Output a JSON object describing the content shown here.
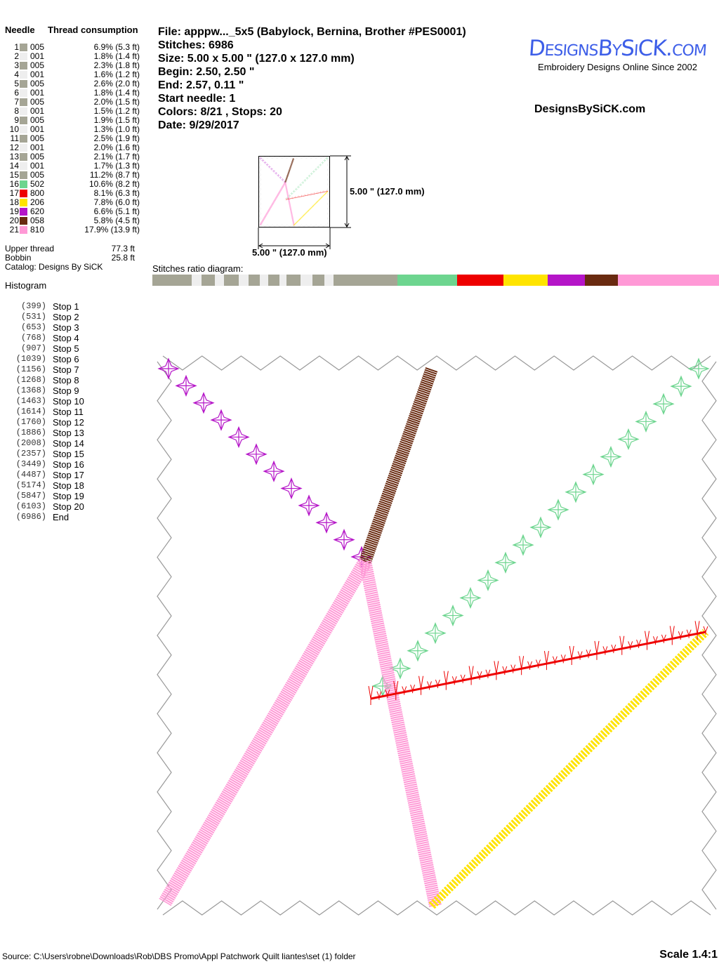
{
  "needle_table": {
    "header_needle": "Needle",
    "header_consumption": "Thread consumption",
    "rows": [
      {
        "num": "1",
        "code": "005",
        "color": "#a5a595",
        "consumption": "6.9% (5.3 ft)",
        "pct": 6.9
      },
      {
        "num": "2",
        "code": "001",
        "color": "#eeeeee",
        "consumption": "1.8% (1.4 ft)",
        "pct": 1.8
      },
      {
        "num": "3",
        "code": "005",
        "color": "#a5a595",
        "consumption": "2.3% (1.8 ft)",
        "pct": 2.3
      },
      {
        "num": "4",
        "code": "001",
        "color": "#eeeeee",
        "consumption": "1.6% (1.2 ft)",
        "pct": 1.6
      },
      {
        "num": "5",
        "code": "005",
        "color": "#a5a595",
        "consumption": "2.6% (2.0 ft)",
        "pct": 2.6
      },
      {
        "num": "6",
        "code": "001",
        "color": "#eeeeee",
        "consumption": "1.8% (1.4 ft)",
        "pct": 1.8
      },
      {
        "num": "7",
        "code": "005",
        "color": "#a5a595",
        "consumption": "2.0% (1.5 ft)",
        "pct": 2.0
      },
      {
        "num": "8",
        "code": "001",
        "color": "#eeeeee",
        "consumption": "1.5% (1.2 ft)",
        "pct": 1.5
      },
      {
        "num": "9",
        "code": "005",
        "color": "#a5a595",
        "consumption": "1.9% (1.5 ft)",
        "pct": 1.9
      },
      {
        "num": "10",
        "code": "001",
        "color": "#eeeeee",
        "consumption": "1.3% (1.0 ft)",
        "pct": 1.3
      },
      {
        "num": "11",
        "code": "005",
        "color": "#a5a595",
        "consumption": "2.5% (1.9 ft)",
        "pct": 2.5
      },
      {
        "num": "12",
        "code": "001",
        "color": "#eeeeee",
        "consumption": "2.0% (1.6 ft)",
        "pct": 2.0
      },
      {
        "num": "13",
        "code": "005",
        "color": "#a5a595",
        "consumption": "2.1% (1.7 ft)",
        "pct": 2.1
      },
      {
        "num": "14",
        "code": "001",
        "color": "#eeeeee",
        "consumption": "1.7% (1.3 ft)",
        "pct": 1.7
      },
      {
        "num": "15",
        "code": "005",
        "color": "#a5a595",
        "consumption": "11.2% (8.7 ft)",
        "pct": 11.2
      },
      {
        "num": "16",
        "code": "502",
        "color": "#6dd58f",
        "consumption": "10.6% (8.2 ft)",
        "pct": 10.6
      },
      {
        "num": "17",
        "code": "800",
        "color": "#ee0000",
        "consumption": "8.1% (6.3 ft)",
        "pct": 8.1
      },
      {
        "num": "18",
        "code": "206",
        "color": "#ffe400",
        "consumption": "7.8% (6.0 ft)",
        "pct": 7.8
      },
      {
        "num": "19",
        "code": "620",
        "color": "#b515c8",
        "consumption": "6.6% (5.1 ft)",
        "pct": 6.6
      },
      {
        "num": "20",
        "code": "058",
        "color": "#692a10",
        "consumption": "5.8% (4.5 ft)",
        "pct": 5.8
      },
      {
        "num": "21",
        "code": "810",
        "color": "#ff99d6",
        "consumption": "17.9% (13.9 ft)",
        "pct": 17.9
      }
    ]
  },
  "totals": {
    "upper_label": "Upper thread",
    "upper_value": "77.3 ft",
    "bobbin_label": "Bobbin",
    "bobbin_value": "25.8 ft",
    "catalog": "Catalog: Designs By SiCK"
  },
  "histogram": {
    "title": "Histogram",
    "stops": [
      {
        "count": "(399)",
        "label": "Stop 1"
      },
      {
        "count": "(531)",
        "label": "Stop 2"
      },
      {
        "count": "(653)",
        "label": "Stop 3"
      },
      {
        "count": "(768)",
        "label": "Stop 4"
      },
      {
        "count": "(907)",
        "label": "Stop 5"
      },
      {
        "count": "(1039)",
        "label": "Stop 6"
      },
      {
        "count": "(1156)",
        "label": "Stop 7"
      },
      {
        "count": "(1268)",
        "label": "Stop 8"
      },
      {
        "count": "(1368)",
        "label": "Stop 9"
      },
      {
        "count": "(1463)",
        "label": "Stop 10"
      },
      {
        "count": "(1614)",
        "label": "Stop 11"
      },
      {
        "count": "(1760)",
        "label": "Stop 12"
      },
      {
        "count": "(1886)",
        "label": "Stop 13"
      },
      {
        "count": "(2008)",
        "label": "Stop 14"
      },
      {
        "count": "(2357)",
        "label": "Stop 15"
      },
      {
        "count": "(3449)",
        "label": "Stop 16"
      },
      {
        "count": "(4487)",
        "label": "Stop 17"
      },
      {
        "count": "(5174)",
        "label": "Stop 18"
      },
      {
        "count": "(5847)",
        "label": "Stop 19"
      },
      {
        "count": "(6103)",
        "label": "Stop 20"
      },
      {
        "count": "(6986)",
        "label": "End"
      }
    ]
  },
  "info": {
    "file": "File: apppw..._5x5  (Babylock, Bernina, Brother #PES0001)",
    "stitches": "Stitches: 6986",
    "size": "Size: 5.00 x 5.00 \" (127.0 x 127.0 mm)",
    "begin": "Begin: 2.50, 2.50 \"",
    "end": "End: 2.57, 0.11 \"",
    "start_needle": "Start needle: 1",
    "colors": "Colors: 8/21 , Stops: 20",
    "date": "Date: 9/29/2017"
  },
  "logo": {
    "text": "DesignsBySiCK.com",
    "tagline": "Embroidery Designs Online Since 2002",
    "color": "#3d5ee8"
  },
  "site": "DesignsBySiCK.com",
  "thumbnail": {
    "height_label": "5.00 \" (127.0 mm)",
    "width_label": "5.00 \" (127.0 mm)"
  },
  "ratio_label": "Stitches ratio diagram:",
  "footer": {
    "source": "Source: C:\\Users\\robne\\Downloads\\Rob\\DBS Promo\\Appl Patchwork Quilt liantes\\set (1) folder",
    "scale": "Scale 1.4:1"
  }
}
